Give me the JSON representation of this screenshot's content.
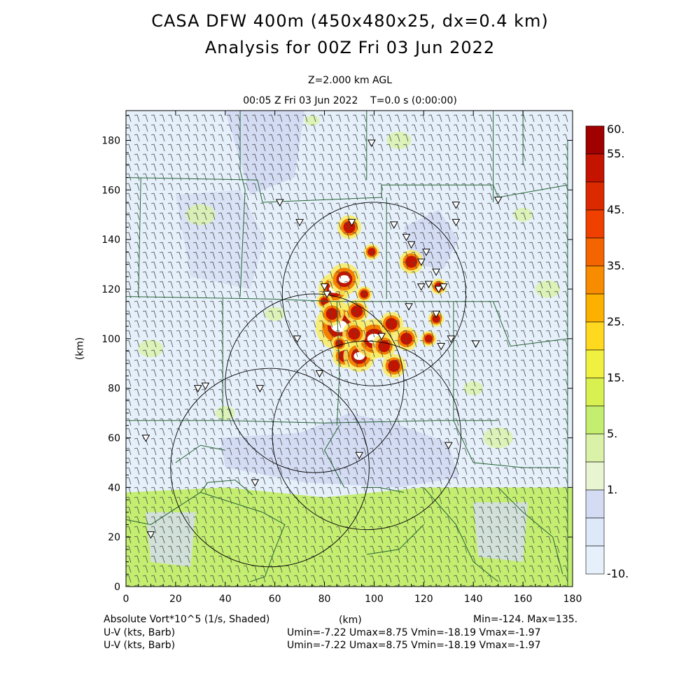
{
  "title_line1": "CASA DFW 400m (450x480x25, dx=0.4 km)",
  "title_line2": "Analysis for 00Z Fri 03 Jun 2022",
  "level_label": "Z=2.000 km AGL",
  "time_label": "00:05 Z Fri 03 Jun 2022    T=0.0 s (0:00:00)",
  "axes": {
    "x_label": "(km)",
    "y_label": "(km)",
    "x_ticks": [
      "0",
      "20",
      "40",
      "60",
      "80",
      "100",
      "120",
      "140",
      "160",
      "180"
    ],
    "y_ticks": [
      "0",
      "20",
      "40",
      "60",
      "80",
      "100",
      "120",
      "140",
      "160",
      "180"
    ],
    "x_range": [
      0,
      180
    ],
    "y_range": [
      0,
      192
    ]
  },
  "colorbar": {
    "labels": [
      "60.",
      "55.",
      "45.",
      "35.",
      "25.",
      "15.",
      "5.",
      "1.",
      "-10."
    ],
    "colors": [
      "#a00000",
      "#c41400",
      "#dc2a00",
      "#f04000",
      "#f46400",
      "#f88c00",
      "#fcb000",
      "#ffd820",
      "#f0f040",
      "#d8f050",
      "#c4ee70",
      "#daf2a8",
      "#e8f5d0",
      "#d4dcf4",
      "#dde8f8",
      "#e6f0fb"
    ]
  },
  "footer": {
    "field_name": "Absolute Vort*10^5 (1/s, Shaded)",
    "x_unit": "(km)",
    "minmax": "Min=-124. Max=135.",
    "wind1_name": "U-V (kts, Barb)",
    "wind1_stats": "Umin=-7.22 Umax=8.75 Vmin=-18.19 Vmax=-1.97",
    "wind2_name": "U-V (kts, Barb)",
    "wind2_stats": "Umin=-7.22 Umax=8.75 Vmin=-18.19 Vmax=-1.97"
  },
  "colors": {
    "background": "#e6f0fb",
    "light_blue": "#d4dcf4",
    "green_shade": "#c4ee70",
    "pale_green": "#daf2a8",
    "county_lines": "#226633",
    "radar_rings": "#000000"
  },
  "radar_rings": [
    {
      "center_km": [
        100,
        118
      ],
      "radius_km": 37
    },
    {
      "center_km": [
        76,
        82
      ],
      "radius_km": 36
    },
    {
      "center_km": [
        97,
        61
      ],
      "radius_km": 38
    },
    {
      "center_km": [
        58,
        48
      ],
      "radius_km": 40
    }
  ],
  "stations_km": [
    [
      99,
      179
    ],
    [
      62,
      155
    ],
    [
      70,
      147
    ],
    [
      91,
      147
    ],
    [
      108,
      146
    ],
    [
      133,
      154
    ],
    [
      133,
      147
    ],
    [
      115,
      138
    ],
    [
      113,
      141
    ],
    [
      121,
      135
    ],
    [
      119,
      131
    ],
    [
      125,
      127
    ],
    [
      119,
      121
    ],
    [
      122,
      122
    ],
    [
      126,
      120
    ],
    [
      80,
      121
    ],
    [
      81,
      118
    ],
    [
      128,
      121
    ],
    [
      150,
      156
    ],
    [
      141,
      98
    ],
    [
      125,
      110
    ],
    [
      127,
      97
    ],
    [
      131,
      100
    ],
    [
      69,
      100
    ],
    [
      78,
      86
    ],
    [
      32,
      81
    ],
    [
      29,
      80
    ],
    [
      54,
      80
    ],
    [
      8,
      60
    ],
    [
      94,
      53
    ],
    [
      130,
      57
    ],
    [
      52,
      42
    ],
    [
      10,
      21
    ],
    [
      103,
      101
    ],
    [
      114,
      113
    ]
  ],
  "storm_cells_km": [
    [
      88,
      93,
      3
    ],
    [
      94,
      93,
      4
    ],
    [
      100,
      100,
      5
    ],
    [
      86,
      105,
      6
    ],
    [
      84,
      120,
      4
    ],
    [
      88,
      124,
      4
    ],
    [
      90,
      145,
      3
    ],
    [
      99,
      135,
      2
    ],
    [
      115,
      131,
      3
    ],
    [
      107,
      106,
      3
    ],
    [
      113,
      100,
      3
    ],
    [
      125,
      108,
      2
    ],
    [
      126,
      121,
      2
    ],
    [
      122,
      100,
      2
    ],
    [
      93,
      111,
      3
    ],
    [
      80,
      115,
      2
    ],
    [
      83,
      110,
      3
    ],
    [
      96,
      118,
      2
    ],
    [
      104,
      97,
      3
    ],
    [
      108,
      89,
      3
    ],
    [
      86,
      98,
      2
    ],
    [
      92,
      102,
      3
    ]
  ]
}
